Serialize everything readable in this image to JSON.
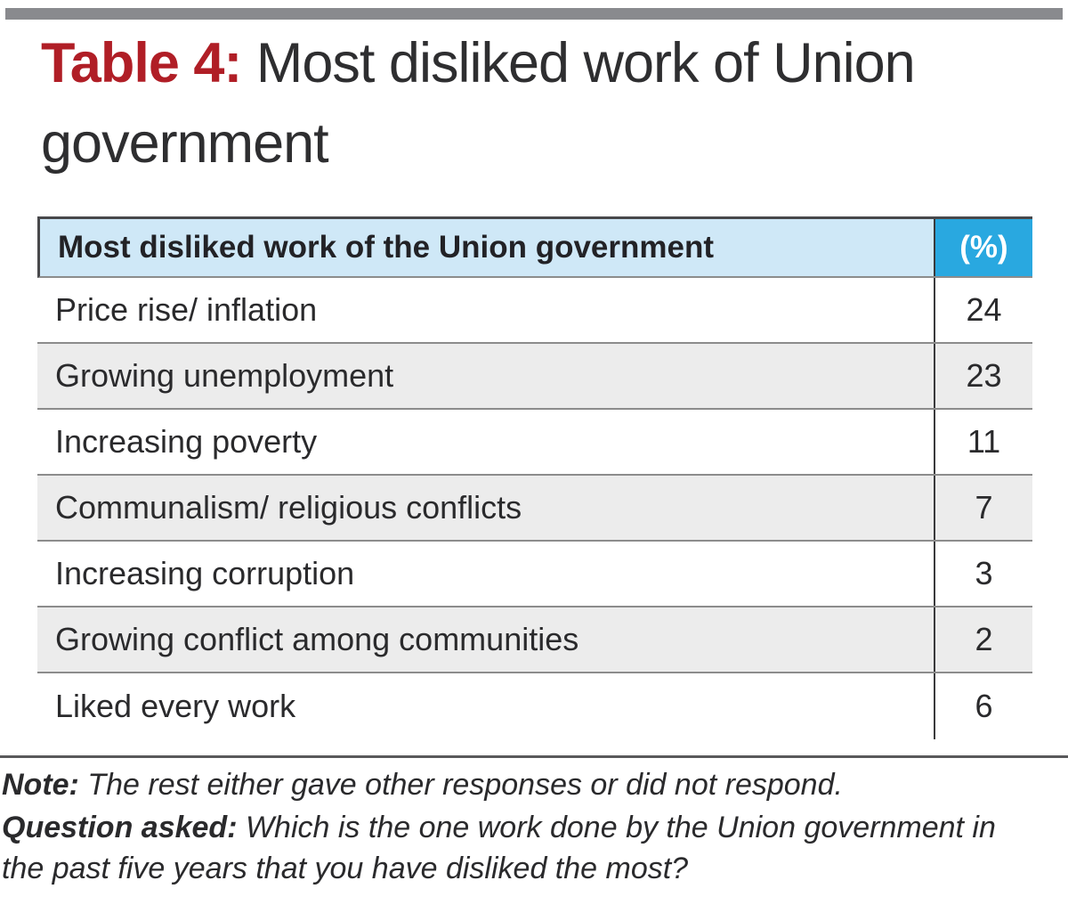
{
  "page": {
    "top_bar_color": "#898a8e",
    "accent_red": "#b01e26",
    "header_light_blue": "#cfe8f7",
    "header_dark_blue": "#29a8e0",
    "row_alt_gray": "#ececec"
  },
  "title": {
    "prefix": "Table 4:",
    "rest": " Most disliked work of Union government"
  },
  "table": {
    "header": {
      "label": "Most disliked work of the Union government",
      "value_label": "(%)"
    },
    "rows": [
      {
        "label": "Price rise/ inflation",
        "value": "24"
      },
      {
        "label": "Growing unemployment",
        "value": "23"
      },
      {
        "label": "Increasing poverty",
        "value": "11"
      },
      {
        "label": "Communalism/ religious conflicts",
        "value": "7"
      },
      {
        "label": "Increasing corruption",
        "value": "3"
      },
      {
        "label": "Growing conflict among communities",
        "value": "2"
      },
      {
        "label": "Liked every work",
        "value": "6"
      }
    ]
  },
  "notes": {
    "note_label": "Note:",
    "note_text": " The rest either gave other responses or did not respond.",
    "question_label": "Question asked:",
    "question_text": " Which is the one work done by the Union government in the past five years that you have disliked the most?"
  },
  "chart_data": {
    "type": "table",
    "title": "Table 4: Most disliked work of Union government",
    "columns": [
      "Most disliked work of the Union government",
      "(%)"
    ],
    "rows": [
      [
        "Price rise/ inflation",
        24
      ],
      [
        "Growing unemployment",
        23
      ],
      [
        "Increasing poverty",
        11
      ],
      [
        "Communalism/ religious conflicts",
        7
      ],
      [
        "Increasing corruption",
        3
      ],
      [
        "Growing conflict among communities",
        2
      ],
      [
        "Liked every work",
        6
      ]
    ],
    "notes": [
      "Note: The rest either gave other responses or did not respond.",
      "Question asked: Which is the one work done by the Union government in the past five years that you have disliked the most?"
    ]
  }
}
